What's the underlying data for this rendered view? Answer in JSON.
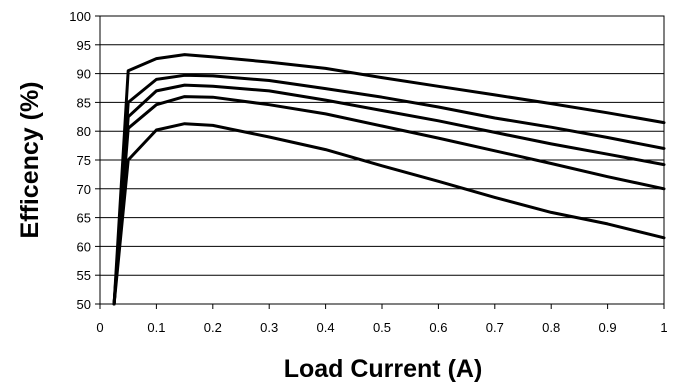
{
  "chart_data": {
    "type": "line",
    "title": "",
    "xlabel": "Load Current (A)",
    "ylabel": "Efficency (%)",
    "xlim": [
      0,
      1
    ],
    "ylim": [
      50,
      100
    ],
    "xticks": [
      0,
      0.1,
      0.2,
      0.3,
      0.4,
      0.5,
      0.6,
      0.7,
      0.8,
      0.9,
      1
    ],
    "xtick_labels": [
      "0",
      "0.1",
      "0.2",
      "0.3",
      "0.4",
      "0.5",
      "0.6",
      "0.7",
      "0.8",
      "0.9",
      "1"
    ],
    "yticks": [
      50,
      55,
      60,
      65,
      70,
      75,
      80,
      85,
      90,
      95,
      100
    ],
    "ytick_labels": [
      "50",
      "55",
      "60",
      "65",
      "70",
      "75",
      "80",
      "85",
      "90",
      "95",
      "100"
    ],
    "grid": "horizontal",
    "legend": "none",
    "line_color": "#000000",
    "series": [
      {
        "x": [
          0.025,
          0.05,
          0.1,
          0.15,
          0.2,
          0.3,
          0.4,
          0.5,
          0.6,
          0.7,
          0.8,
          0.9,
          1.0
        ],
        "y": [
          50,
          90.5,
          92.6,
          93.3,
          92.9,
          92.0,
          90.9,
          89.3,
          87.8,
          86.3,
          84.8,
          83.2,
          81.5
        ]
      },
      {
        "x": [
          0.025,
          0.05,
          0.1,
          0.15,
          0.2,
          0.3,
          0.4,
          0.5,
          0.6,
          0.7,
          0.8,
          0.9,
          1.0
        ],
        "y": [
          50,
          85.0,
          89.0,
          89.7,
          89.6,
          88.8,
          87.4,
          85.9,
          84.2,
          82.3,
          80.7,
          78.9,
          77.0
        ]
      },
      {
        "x": [
          0.025,
          0.05,
          0.1,
          0.15,
          0.2,
          0.3,
          0.4,
          0.5,
          0.6,
          0.7,
          0.8,
          0.9,
          1.0
        ],
        "y": [
          50,
          82.5,
          87.0,
          88.0,
          87.8,
          87.0,
          85.4,
          83.6,
          81.8,
          79.8,
          77.8,
          76.0,
          74.2
        ]
      },
      {
        "x": [
          0.025,
          0.05,
          0.1,
          0.15,
          0.2,
          0.3,
          0.4,
          0.5,
          0.6,
          0.7,
          0.8,
          0.9,
          1.0
        ],
        "y": [
          50,
          80.5,
          84.6,
          86.0,
          85.9,
          84.6,
          83.0,
          80.9,
          78.8,
          76.6,
          74.4,
          72.1,
          70.0
        ]
      },
      {
        "x": [
          0.025,
          0.05,
          0.1,
          0.15,
          0.2,
          0.3,
          0.4,
          0.5,
          0.6,
          0.7,
          0.8,
          0.9,
          1.0
        ],
        "y": [
          50,
          75.0,
          80.2,
          81.3,
          81.0,
          79.0,
          76.8,
          74.0,
          71.3,
          68.5,
          65.9,
          63.9,
          61.5
        ]
      }
    ]
  }
}
